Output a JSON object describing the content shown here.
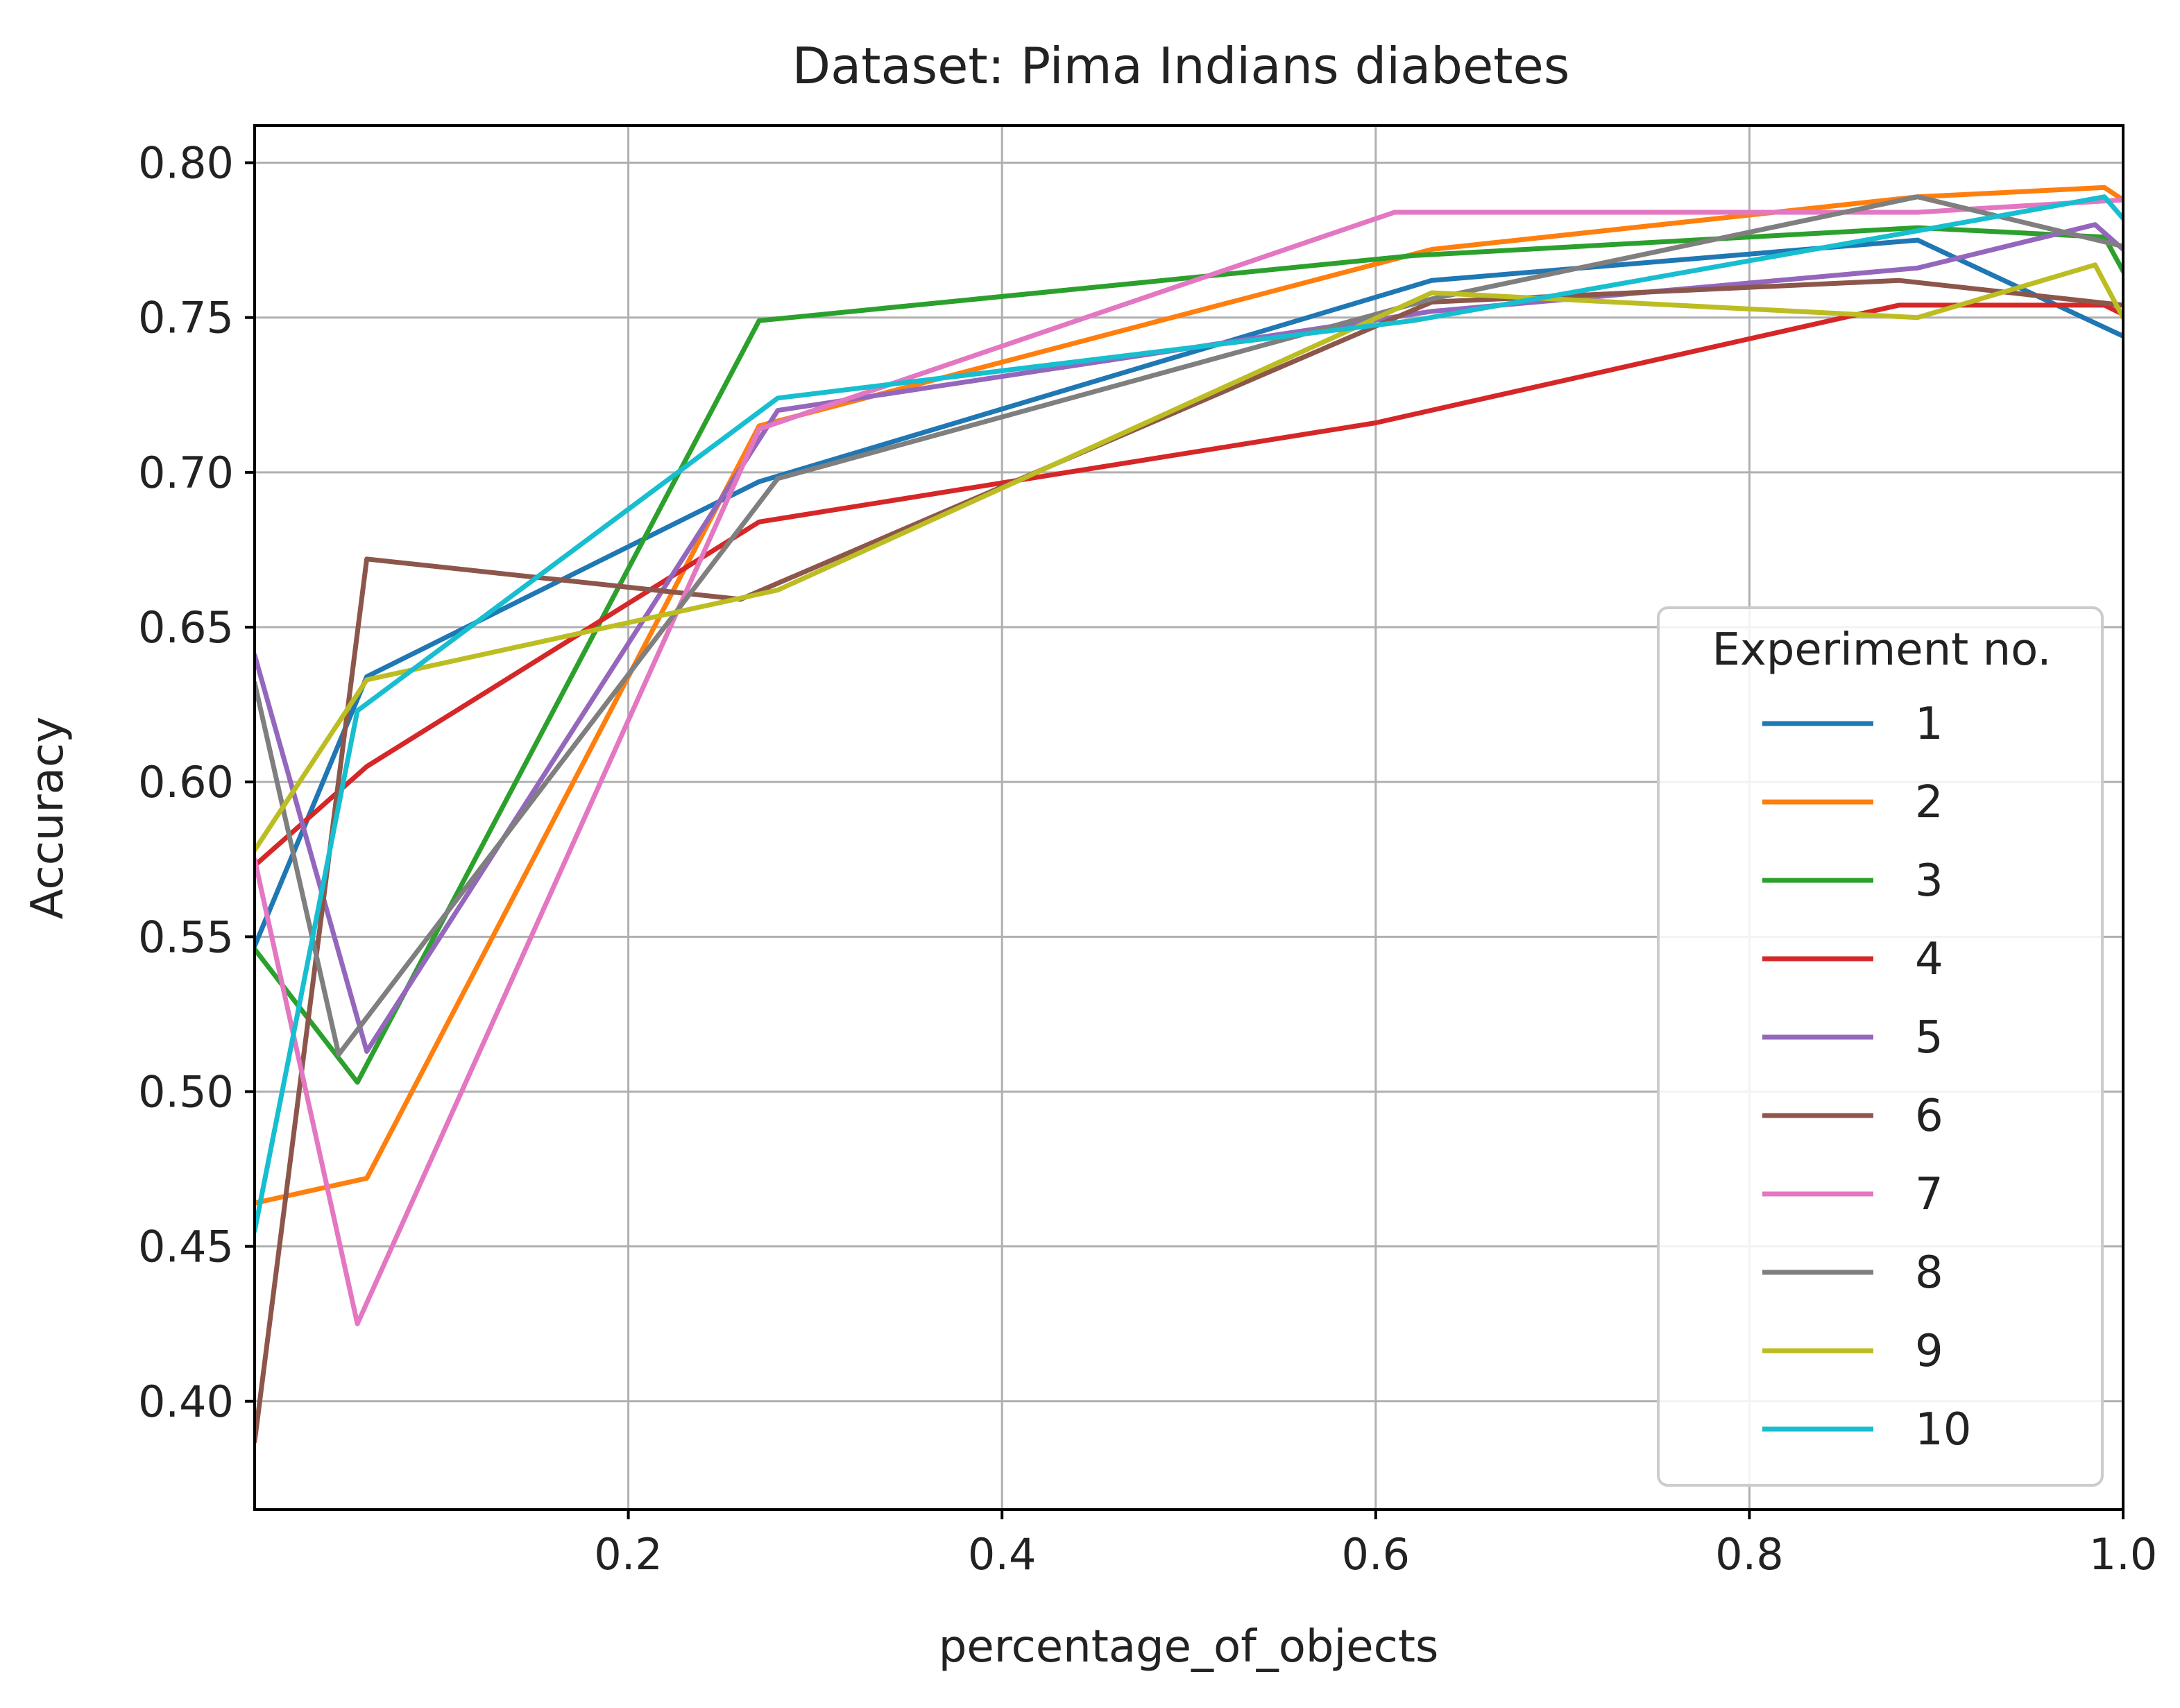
{
  "chart_data": {
    "type": "line",
    "title": "Dataset: Pima Indians diabetes",
    "xlabel": "percentage_of_objects",
    "ylabel": "Accuracy",
    "xlim": [
      0.0,
      1.0
    ],
    "ylim": [
      0.365,
      0.812
    ],
    "xticks": [
      0.2,
      0.4,
      0.6,
      0.8,
      1.0
    ],
    "xtick_labels": [
      "0.2",
      "0.4",
      "0.6",
      "0.8",
      "1.0"
    ],
    "yticks": [
      0.4,
      0.45,
      0.5,
      0.55,
      0.6,
      0.65,
      0.7,
      0.75,
      0.8
    ],
    "ytick_labels": [
      "0.40",
      "0.45",
      "0.50",
      "0.55",
      "0.60",
      "0.65",
      "0.70",
      "0.75",
      "0.80"
    ],
    "grid": true,
    "legend_title": "Experiment no.",
    "legend_position": "center-right",
    "series": [
      {
        "name": "1",
        "color": "#1f77b4",
        "x": [
          0.0,
          0.06,
          0.27,
          0.63,
          0.89,
          1.0
        ],
        "y": [
          0.547,
          0.634,
          0.697,
          0.762,
          0.775,
          0.744
        ]
      },
      {
        "name": "2",
        "color": "#ff7f0e",
        "x": [
          0.0,
          0.06,
          0.27,
          0.63,
          0.89,
          0.99,
          1.0
        ],
        "y": [
          0.464,
          0.472,
          0.715,
          0.772,
          0.789,
          0.792,
          0.788
        ]
      },
      {
        "name": "3",
        "color": "#2ca02c",
        "x": [
          0.0,
          0.055,
          0.27,
          0.62,
          0.89,
          0.99,
          1.0
        ],
        "y": [
          0.546,
          0.503,
          0.749,
          0.77,
          0.779,
          0.776,
          0.765
        ]
      },
      {
        "name": "4",
        "color": "#d62728",
        "x": [
          0.0,
          0.06,
          0.27,
          0.6,
          0.88,
          0.99,
          1.0
        ],
        "y": [
          0.573,
          0.605,
          0.684,
          0.716,
          0.754,
          0.754,
          0.751
        ]
      },
      {
        "name": "5",
        "color": "#9467bd",
        "x": [
          0.0,
          0.06,
          0.28,
          0.63,
          0.89,
          0.985,
          1.0
        ],
        "y": [
          0.641,
          0.513,
          0.72,
          0.752,
          0.766,
          0.78,
          0.772
        ]
      },
      {
        "name": "6",
        "color": "#8c564b",
        "x": [
          0.0,
          0.06,
          0.26,
          0.63,
          0.88,
          1.0
        ],
        "y": [
          0.387,
          0.672,
          0.659,
          0.755,
          0.762,
          0.754
        ]
      },
      {
        "name": "7",
        "color": "#e377c2",
        "x": [
          0.0,
          0.055,
          0.27,
          0.61,
          0.89,
          1.0
        ],
        "y": [
          0.575,
          0.425,
          0.714,
          0.784,
          0.784,
          0.788
        ]
      },
      {
        "name": "8",
        "color": "#7f7f7f",
        "x": [
          0.0,
          0.045,
          0.28,
          0.63,
          0.89,
          1.0
        ],
        "y": [
          0.632,
          0.512,
          0.698,
          0.756,
          0.789,
          0.773
        ]
      },
      {
        "name": "9",
        "color": "#bcbd22",
        "x": [
          0.0,
          0.06,
          0.28,
          0.63,
          0.89,
          0.985,
          1.0
        ],
        "y": [
          0.578,
          0.633,
          0.662,
          0.758,
          0.75,
          0.767,
          0.75
        ]
      },
      {
        "name": "10",
        "color": "#17becf",
        "x": [
          0.0,
          0.055,
          0.28,
          0.62,
          0.89,
          0.99,
          1.0
        ],
        "y": [
          0.455,
          0.623,
          0.724,
          0.749,
          0.778,
          0.789,
          0.782
        ]
      }
    ]
  }
}
